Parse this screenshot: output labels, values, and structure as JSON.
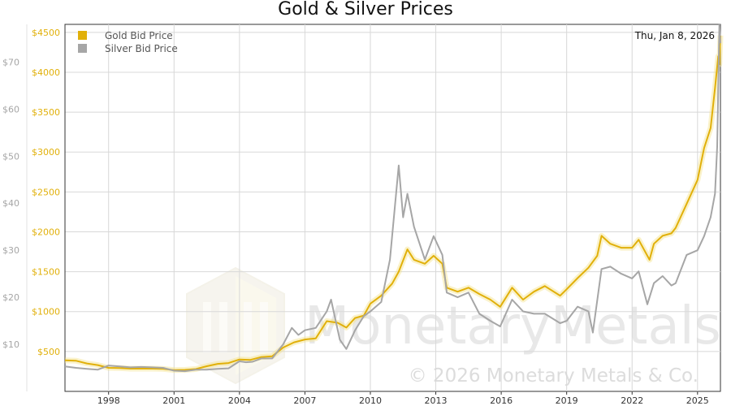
{
  "chart_data": {
    "type": "line",
    "title": "Gold & Silver Prices",
    "date_label": "Thu, Jan 8, 2026",
    "x_ticks": [
      "1998",
      "2001",
      "2004",
      "2007",
      "2010",
      "2013",
      "2016",
      "2019",
      "2022",
      "2025"
    ],
    "x_range": [
      1996.0,
      2026.05
    ],
    "left_axis": {
      "ticks": [
        "$500",
        "$1000",
        "$1500",
        "$2000",
        "$2500",
        "$3000",
        "$3500",
        "$4000",
        "$4500"
      ],
      "range": [
        0,
        4600
      ]
    },
    "right_axis": {
      "ticks": [
        "$10",
        "$20",
        "$30",
        "$40",
        "$50",
        "$60",
        "$70"
      ],
      "range": [
        0,
        78
      ]
    },
    "legend_position": "top-left",
    "grid": true,
    "watermark": {
      "brand_a": "Monetary",
      "brand_b": "Metals",
      "copyright": "© 2026 Monetary Metals & Co."
    },
    "series": [
      {
        "name": "Gold Bid Price",
        "color": "#e1b00a",
        "axis": "left",
        "x": [
          1996.0,
          1996.5,
          1997.0,
          1997.5,
          1998.0,
          1998.5,
          1999.0,
          1999.5,
          2000.0,
          2000.5,
          2001.0,
          2001.5,
          2002.0,
          2002.5,
          2003.0,
          2003.5,
          2004.0,
          2004.5,
          2005.0,
          2005.5,
          2006.0,
          2006.5,
          2007.0,
          2007.5,
          2008.0,
          2008.5,
          2008.9,
          2009.3,
          2009.7,
          2010.0,
          2010.5,
          2011.0,
          2011.3,
          2011.7,
          2012.0,
          2012.5,
          2012.9,
          2013.3,
          2013.5,
          2014.0,
          2014.5,
          2015.0,
          2015.5,
          2015.95,
          2016.5,
          2017.0,
          2017.5,
          2018.0,
          2018.7,
          2019.0,
          2019.5,
          2020.0,
          2020.4,
          2020.6,
          2021.0,
          2021.5,
          2022.0,
          2022.3,
          2022.8,
          2023.0,
          2023.4,
          2023.8,
          2024.0,
          2024.5,
          2025.0,
          2025.3,
          2025.6,
          2025.8,
          2025.95,
          2026.0,
          2026.05
        ],
        "y": [
          390,
          385,
          350,
          330,
          295,
          292,
          285,
          285,
          285,
          282,
          268,
          270,
          280,
          315,
          345,
          355,
          400,
          395,
          430,
          440,
          550,
          615,
          650,
          665,
          880,
          860,
          800,
          920,
          950,
          1100,
          1200,
          1350,
          1500,
          1780,
          1650,
          1600,
          1700,
          1600,
          1300,
          1250,
          1300,
          1220,
          1150,
          1060,
          1300,
          1150,
          1250,
          1320,
          1200,
          1280,
          1420,
          1550,
          1700,
          1950,
          1850,
          1800,
          1800,
          1900,
          1650,
          1850,
          1950,
          1980,
          2050,
          2350,
          2650,
          3050,
          3300,
          3800,
          4200,
          4100,
          4460
        ]
      },
      {
        "name": "Silver Bid Price",
        "color": "#a6a6a6",
        "axis": "right",
        "x": [
          1996.0,
          1996.5,
          1997.0,
          1997.5,
          1998.0,
          1998.5,
          1999.0,
          1999.5,
          2000.0,
          2000.5,
          2001.0,
          2001.5,
          2002.0,
          2002.5,
          2003.0,
          2003.5,
          2004.0,
          2004.3,
          2004.6,
          2005.0,
          2005.5,
          2006.0,
          2006.4,
          2006.7,
          2007.0,
          2007.5,
          2008.0,
          2008.2,
          2008.6,
          2008.9,
          2009.3,
          2009.7,
          2010.0,
          2010.5,
          2010.9,
          2011.3,
          2011.5,
          2011.7,
          2012.0,
          2012.5,
          2012.9,
          2013.3,
          2013.5,
          2014.0,
          2014.5,
          2015.0,
          2015.5,
          2015.95,
          2016.5,
          2017.0,
          2017.5,
          2018.0,
          2018.7,
          2019.0,
          2019.5,
          2020.0,
          2020.2,
          2020.6,
          2021.0,
          2021.5,
          2022.0,
          2022.3,
          2022.7,
          2023.0,
          2023.4,
          2023.8,
          2024.0,
          2024.5,
          2025.0,
          2025.3,
          2025.6,
          2025.8,
          2025.9,
          2026.0,
          2026.05
        ],
        "y": [
          5.3,
          5.0,
          4.8,
          4.6,
          5.5,
          5.3,
          5.1,
          5.2,
          5.1,
          5.0,
          4.4,
          4.3,
          4.6,
          4.6,
          4.8,
          4.9,
          6.4,
          6.2,
          6.3,
          7.0,
          7.0,
          10.0,
          13.5,
          12.0,
          13.0,
          13.5,
          17.0,
          19.5,
          11.0,
          9.0,
          13.0,
          16.0,
          17.0,
          19.0,
          28.0,
          48.0,
          37.0,
          42.0,
          35.0,
          28.0,
          33.0,
          29.0,
          21.0,
          20.0,
          21.0,
          16.5,
          15.0,
          13.8,
          19.5,
          17.0,
          16.5,
          16.5,
          14.5,
          15.0,
          18.0,
          17.0,
          12.5,
          26.0,
          26.5,
          25.0,
          24.0,
          25.5,
          18.5,
          23.0,
          24.5,
          22.5,
          23.0,
          29.0,
          30.0,
          33.0,
          37.0,
          42.0,
          52.0,
          78.0,
          74.0
        ]
      }
    ]
  }
}
